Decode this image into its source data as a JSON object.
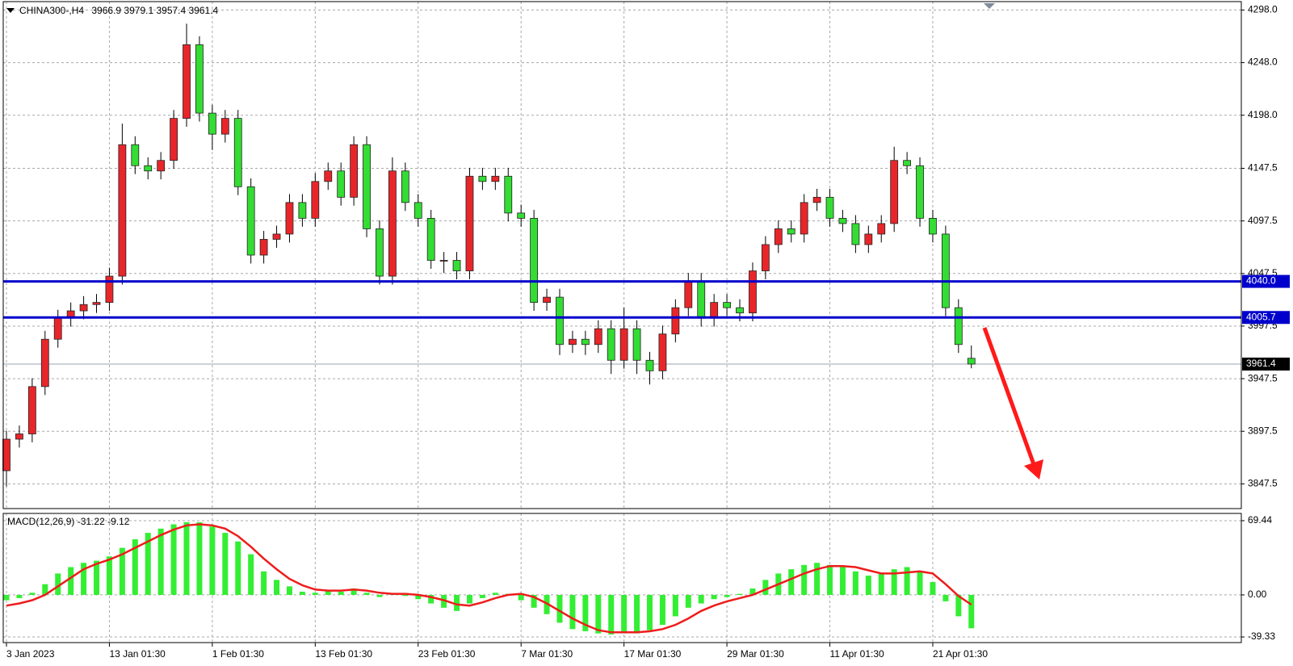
{
  "chart_data": [
    {
      "type": "candlestick",
      "title": "CHINA300-,H4",
      "categories": [
        "3 Jan 2023",
        null,
        null,
        null,
        null,
        null,
        null,
        null,
        "13 Jan 01:30",
        null,
        null,
        null,
        null,
        null,
        null,
        null,
        "1 Feb 01:30",
        null,
        null,
        null,
        null,
        null,
        null,
        null,
        "13 Feb 01:30",
        null,
        null,
        null,
        null,
        null,
        null,
        null,
        "23 Feb 01:30",
        null,
        null,
        null,
        null,
        null,
        null,
        null,
        "7 Mar 01:30",
        null,
        null,
        null,
        null,
        null,
        null,
        null,
        "17 Mar 01:30",
        null,
        null,
        null,
        null,
        null,
        null,
        null,
        "29 Mar 01:30",
        null,
        null,
        null,
        null,
        null,
        null,
        null,
        "11 Apr 01:30",
        null,
        null,
        null,
        null,
        null,
        null,
        null,
        "21 Apr 01:30",
        null,
        null,
        null
      ],
      "open": [
        3860,
        3890,
        3895,
        3940,
        3985,
        4005,
        4012,
        4018,
        4020,
        4045,
        4170,
        4150,
        4145,
        4155,
        4195,
        4265,
        4200,
        4180,
        4195,
        4130,
        4065,
        4080,
        4085,
        4115,
        4100,
        4135,
        4145,
        4120,
        4170,
        4090,
        4045,
        4145,
        4115,
        4100,
        4060,
        4060,
        4050,
        4140,
        4135,
        4140,
        4105,
        4100,
        4020,
        4025,
        3980,
        3985,
        3980,
        3995,
        3965,
        3995,
        3965,
        3955,
        3990,
        4015,
        4040,
        4005,
        4020,
        4015,
        4010,
        4050,
        4075,
        4090,
        4085,
        4115,
        4120,
        4100,
        4095,
        4075,
        4085,
        4095,
        4155,
        4150,
        4100,
        4085,
        4015,
        3966.9
      ],
      "high": [
        3898,
        3903,
        3948,
        3993,
        4013,
        4020,
        4026,
        4028,
        4053,
        4190,
        4178,
        4158,
        4163,
        4203,
        4285,
        4273,
        4208,
        4203,
        4203,
        4138,
        4088,
        4093,
        4123,
        4123,
        4143,
        4153,
        4153,
        4178,
        4178,
        4098,
        4158,
        4153,
        4123,
        4108,
        4068,
        4068,
        4148,
        4148,
        4148,
        4148,
        4113,
        4108,
        4033,
        4033,
        3993,
        3993,
        4003,
        4003,
        4015,
        4003,
        3973,
        3998,
        4023,
        4048,
        4048,
        4028,
        4028,
        4023,
        4058,
        4083,
        4098,
        4098,
        4123,
        4128,
        4128,
        4108,
        4103,
        4093,
        4103,
        4168,
        4163,
        4158,
        4108,
        4093,
        4023,
        3979.1
      ],
      "low": [
        3845,
        3882,
        3887,
        3932,
        3977,
        3997,
        4004,
        4010,
        4012,
        4037,
        4142,
        4137,
        4137,
        4147,
        4187,
        4192,
        4165,
        4172,
        4122,
        4057,
        4057,
        4072,
        4077,
        4092,
        4092,
        4127,
        4112,
        4112,
        4082,
        4037,
        4037,
        4107,
        4092,
        4052,
        4048,
        4042,
        4042,
        4127,
        4127,
        4097,
        4092,
        4012,
        4012,
        3970,
        3972,
        3970,
        3972,
        3952,
        3957,
        3952,
        3942,
        3947,
        3982,
        4007,
        3997,
        3997,
        4007,
        4002,
        4002,
        4042,
        4067,
        4077,
        4077,
        4107,
        4092,
        4087,
        4067,
        4067,
        4077,
        4087,
        4142,
        4092,
        4077,
        4007,
        3972,
        3957.4
      ],
      "close": [
        3890,
        3895,
        3940,
        3985,
        4005,
        4012,
        4018,
        4020,
        4045,
        4170,
        4150,
        4145,
        4155,
        4195,
        4265,
        4200,
        4180,
        4195,
        4130,
        4065,
        4080,
        4085,
        4115,
        4100,
        4135,
        4145,
        4120,
        4170,
        4090,
        4045,
        4145,
        4115,
        4100,
        4060,
        4060,
        4050,
        4140,
        4135,
        4140,
        4105,
        4100,
        4020,
        4025,
        3980,
        3985,
        3980,
        3995,
        3965,
        3995,
        3965,
        3955,
        3990,
        4015,
        4040,
        4005,
        4020,
        4015,
        4010,
        4050,
        4075,
        4090,
        4085,
        4115,
        4120,
        4100,
        4095,
        4075,
        4085,
        4095,
        4155,
        4150,
        4100,
        4085,
        4015,
        3980,
        3961.4
      ],
      "up_color": "#e8262a",
      "down_color": "#33dd33",
      "ylim": [
        3824,
        4306
      ],
      "yticks": [
        {
          "value": 4298,
          "label": "4298.0"
        },
        {
          "value": 4248,
          "label": "4248.0"
        },
        {
          "value": 4198,
          "label": "4198.0"
        },
        4147.5,
        4097.5,
        4047.5,
        3997.5,
        3947.5,
        3897.5,
        3847.5
      ],
      "levels": [
        {
          "value": 4040,
          "label": "4040.0"
        },
        4005.7
      ],
      "level_color": "#0000cc",
      "grid": true
    },
    {
      "type": "macd",
      "title": "MACD(12,26,9)",
      "histogram": [
        -5,
        -3,
        2,
        10,
        20,
        26,
        30,
        32,
        36,
        44,
        52,
        58,
        62,
        66,
        68,
        68,
        64,
        58,
        50,
        38,
        22,
        14,
        8,
        3,
        2,
        4,
        3,
        6,
        2,
        -2,
        1,
        -1,
        -4,
        -8,
        -12,
        -15,
        -8,
        -3,
        2,
        1,
        -5,
        -12,
        -18,
        -26,
        -32,
        -34,
        -36,
        -37,
        -36,
        -36,
        -33,
        -28,
        -20,
        -12,
        -8,
        -4,
        -2,
        1,
        6,
        14,
        20,
        24,
        28,
        30,
        28,
        26,
        22,
        18,
        20,
        24,
        26,
        22,
        12,
        -6,
        -20,
        -31.22
      ],
      "signal": [
        -10,
        -8,
        -5,
        0,
        8,
        16,
        24,
        29,
        33,
        38,
        44,
        50,
        56,
        61,
        65,
        66,
        65,
        62,
        55,
        45,
        34,
        24,
        15,
        9,
        5,
        4,
        4,
        5,
        4,
        2,
        1,
        1,
        0,
        -2,
        -5,
        -9,
        -10,
        -7,
        -3,
        0,
        1,
        -2,
        -8,
        -15,
        -22,
        -28,
        -33,
        -35,
        -35,
        -35,
        -34,
        -32,
        -28,
        -22,
        -15,
        -10,
        -6,
        -3,
        0,
        5,
        10,
        15,
        20,
        24,
        27,
        27,
        26,
        23,
        20,
        20,
        21,
        22,
        20,
        10,
        -1,
        -9.12
      ],
      "hist_color": "#33ee33",
      "signal_color": "#ee1c1c",
      "ylim": [
        -44.6,
        76.2
      ],
      "yticks": [
        69.44,
        {
          "value": 0,
          "label": "0.00"
        },
        -39.33
      ],
      "grid": true
    }
  ]
}
